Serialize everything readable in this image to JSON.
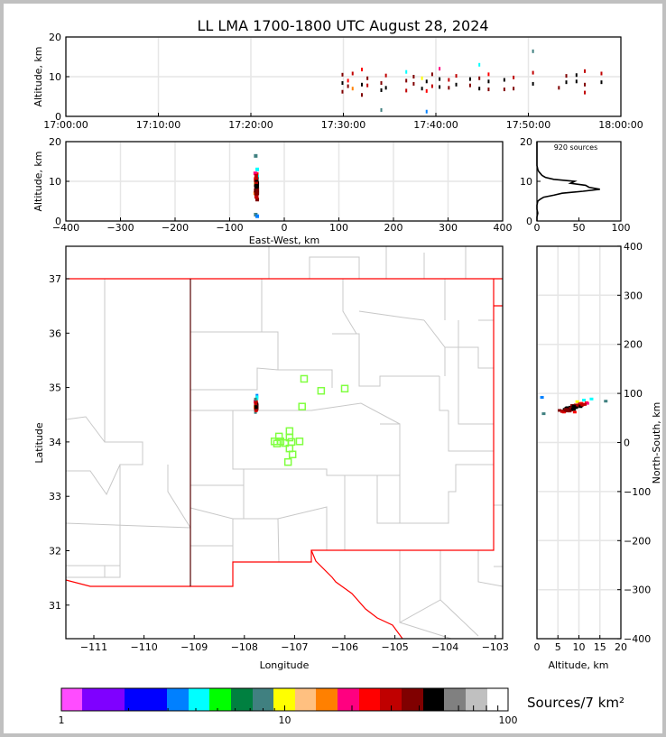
{
  "chart_data": {
    "type": "scatter",
    "title": "LL LMA 1700-1800 UTC August 28, 2024",
    "time_height": {
      "ylabel": "Altitude, km",
      "xlim": [
        "17:00:00",
        "18:00:00"
      ],
      "ylim": [
        0,
        20
      ],
      "xticks": [
        "17:00:00",
        "17:10:00",
        "17:20:00",
        "17:30:00",
        "17:40:00",
        "17:50:00",
        "18:00:00"
      ],
      "yticks": [
        0,
        10,
        20
      ],
      "grid": true
    },
    "ew_height": {
      "xlabel": "East-West, km",
      "ylabel": "Altitude, km",
      "xlim": [
        -400,
        400
      ],
      "ylim": [
        0,
        20
      ],
      "xticks": [
        -400,
        -300,
        -200,
        -100,
        0,
        100,
        200,
        300,
        400
      ],
      "yticks": [
        0,
        10,
        20
      ],
      "grid": true
    },
    "altitude_histogram": {
      "annotation": "920 sources",
      "xlim": [
        0,
        100
      ],
      "ylim": [
        0,
        20
      ],
      "xticks": [
        0,
        50,
        100
      ],
      "yticks": [
        0,
        10,
        20
      ],
      "alt_km": [
        0,
        1,
        2,
        3,
        4,
        5,
        5.5,
        6,
        6.5,
        7,
        7.5,
        8,
        8.5,
        9,
        9.5,
        10,
        10.5,
        11,
        11.5,
        12,
        12.5,
        13,
        14,
        16,
        18,
        20
      ],
      "count": [
        0,
        0,
        1,
        0,
        0,
        1,
        4,
        8,
        20,
        30,
        55,
        75,
        62,
        58,
        40,
        45,
        20,
        10,
        6,
        4,
        2,
        1,
        0,
        0,
        0,
        0
      ]
    },
    "plan_view": {
      "xlabel": "Longitude",
      "ylabel": "Latitude",
      "xlim": [
        -111.56,
        -102.86
      ],
      "ylim": [
        30.39,
        37.6
      ],
      "xticks": [
        -111,
        -110,
        -109,
        -108,
        -107,
        -106,
        -105,
        -104,
        -103
      ],
      "yticks": [
        31,
        32,
        33,
        34,
        35,
        36,
        37
      ],
      "border_color": "#ff0000",
      "county_color": "#c8c8c8",
      "station_color": "#80ff40",
      "stations": [
        [
          -106.81,
          35.16
        ],
        [
          -106.47,
          34.94
        ],
        [
          -106.0,
          34.98
        ],
        [
          -106.85,
          34.65
        ],
        [
          -107.1,
          34.2
        ],
        [
          -107.31,
          34.1
        ],
        [
          -107.1,
          34.08
        ],
        [
          -107.4,
          34.01
        ],
        [
          -107.28,
          34.01
        ],
        [
          -107.19,
          33.98
        ],
        [
          -107.06,
          34.0
        ],
        [
          -106.9,
          34.01
        ],
        [
          -107.35,
          33.97
        ],
        [
          -107.1,
          33.88
        ],
        [
          -107.04,
          33.77
        ],
        [
          -107.13,
          33.63
        ]
      ]
    },
    "ns_height": {
      "xlabel": "Altitude, km",
      "ylabel": "North-South, km",
      "xlim": [
        0,
        20
      ],
      "ylim": [
        -400,
        400
      ],
      "xticks": [
        0,
        5,
        10,
        15,
        20
      ],
      "yticks": [
        -400,
        -300,
        -200,
        -100,
        0,
        100,
        200,
        300,
        400
      ],
      "grid": true
    },
    "colorbar": {
      "label": "Sources/7 km²",
      "scale": "log",
      "range": [
        1,
        100
      ],
      "ticklabels": [
        "1",
        "10",
        "100"
      ],
      "colors": [
        "#ff4cff",
        "#7f00ff",
        "#7f00ff",
        "#0000ff",
        "#0000ff",
        "#0080ff",
        "#00ffff",
        "#00ff00",
        "#008040",
        "#408080",
        "#ffff00",
        "#ffc080",
        "#ff8000",
        "#ff0080",
        "#ff0000",
        "#c00000",
        "#800000",
        "#000000",
        "#808080",
        "#c0c0c0",
        "#ffffff"
      ]
    },
    "sources": [
      [
        "17:29:54",
        -107.76,
        34.6,
        6.2
      ],
      [
        "17:29:54",
        -107.75,
        34.66,
        8.4
      ],
      [
        "17:29:54",
        -107.77,
        34.7,
        10.5
      ],
      [
        "17:30:30",
        -107.74,
        34.62,
        7.6
      ],
      [
        "17:30:30",
        -107.76,
        34.58,
        9.0
      ],
      [
        "17:31:00",
        -107.78,
        34.64,
        7.0
      ],
      [
        "17:31:00",
        -107.75,
        34.72,
        10.8
      ],
      [
        "17:32:00",
        -107.74,
        34.61,
        5.4
      ],
      [
        "17:32:00",
        -107.76,
        34.67,
        8.0
      ],
      [
        "17:32:00",
        -107.75,
        34.75,
        11.8
      ],
      [
        "17:32:36",
        -107.77,
        34.6,
        7.8
      ],
      [
        "17:32:36",
        -107.74,
        34.69,
        9.6
      ],
      [
        "17:34:06",
        -107.75,
        34.63,
        6.6
      ],
      [
        "17:34:06",
        -107.76,
        34.7,
        8.4
      ],
      [
        "17:34:06",
        -107.77,
        34.55,
        1.6
      ],
      [
        "17:34:36",
        -107.74,
        34.66,
        7.2
      ],
      [
        "17:34:36",
        -107.76,
        34.73,
        10.3
      ],
      [
        "17:36:48",
        -107.75,
        34.59,
        6.5
      ],
      [
        "17:36:48",
        -107.77,
        34.68,
        9.0
      ],
      [
        "17:36:48",
        -107.74,
        34.8,
        11.2
      ],
      [
        "17:37:36",
        -107.76,
        34.62,
        8.2
      ],
      [
        "17:37:36",
        -107.75,
        34.7,
        10.0
      ],
      [
        "17:38:30",
        -107.74,
        34.64,
        7.0
      ],
      [
        "17:38:30",
        -107.77,
        34.77,
        9.6
      ],
      [
        "17:39:00",
        -107.76,
        34.58,
        6.4
      ],
      [
        "17:39:00",
        -107.75,
        34.66,
        8.8
      ],
      [
        "17:39:00",
        -107.74,
        34.85,
        1.2
      ],
      [
        "17:39:36",
        -107.77,
        34.61,
        7.6
      ],
      [
        "17:39:36",
        -107.75,
        34.7,
        10.6
      ],
      [
        "17:40:24",
        -107.76,
        34.63,
        7.4
      ],
      [
        "17:40:24",
        -107.74,
        34.68,
        9.4
      ],
      [
        "17:40:24",
        -107.78,
        34.74,
        12.0
      ],
      [
        "17:41:24",
        -107.75,
        34.62,
        7.2
      ],
      [
        "17:41:24",
        -107.76,
        34.71,
        9.2
      ],
      [
        "17:42:12",
        -107.74,
        34.64,
        8.0
      ],
      [
        "17:42:12",
        -107.77,
        34.73,
        10.2
      ],
      [
        "17:43:42",
        -107.75,
        34.6,
        7.8
      ],
      [
        "17:43:42",
        -107.76,
        34.67,
        9.4
      ],
      [
        "17:44:42",
        -107.75,
        34.65,
        7.0
      ],
      [
        "17:44:42",
        -107.76,
        34.7,
        9.6
      ],
      [
        "17:44:42",
        -107.74,
        34.82,
        13.0
      ],
      [
        "17:45:42",
        -107.76,
        34.62,
        6.8
      ],
      [
        "17:45:42",
        -107.75,
        34.69,
        8.8
      ],
      [
        "17:45:42",
        -107.77,
        34.74,
        10.6
      ],
      [
        "17:47:24",
        -107.75,
        34.61,
        6.8
      ],
      [
        "17:47:24",
        -107.76,
        34.66,
        9.2
      ],
      [
        "17:48:24",
        -107.74,
        34.63,
        7.0
      ],
      [
        "17:48:24",
        -107.76,
        34.71,
        9.8
      ],
      [
        "17:50:30",
        -107.75,
        34.64,
        8.2
      ],
      [
        "17:50:30",
        -107.76,
        34.72,
        11.0
      ],
      [
        "17:50:30",
        -107.77,
        34.78,
        16.4
      ],
      [
        "17:53:18",
        -107.75,
        34.6,
        7.2
      ],
      [
        "17:54:06",
        -107.74,
        34.66,
        8.6
      ],
      [
        "17:54:06",
        -107.76,
        34.7,
        10.2
      ],
      [
        "17:55:12",
        -107.76,
        34.63,
        8.8
      ],
      [
        "17:55:12",
        -107.75,
        34.68,
        10.4
      ],
      [
        "17:56:06",
        -107.75,
        34.59,
        6.0
      ],
      [
        "17:56:06",
        -107.74,
        34.65,
        8.0
      ],
      [
        "17:56:06",
        -107.76,
        34.72,
        11.4
      ],
      [
        "17:57:54",
        -107.75,
        34.64,
        8.6
      ],
      [
        "17:57:54",
        -107.76,
        34.71,
        10.8
      ]
    ]
  }
}
